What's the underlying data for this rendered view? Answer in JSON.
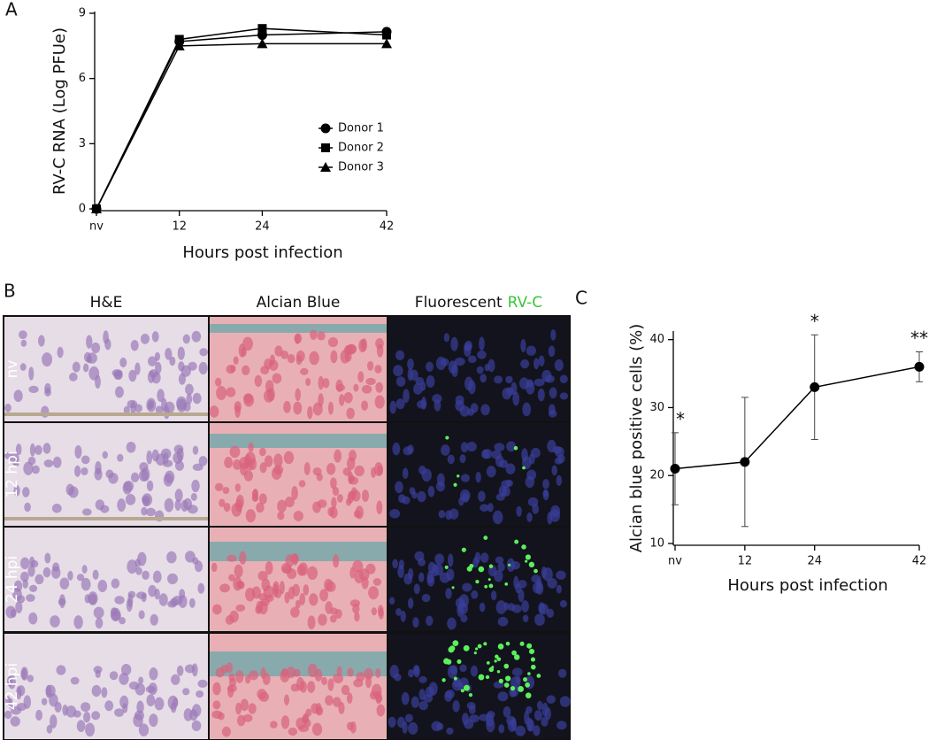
{
  "panel_labels": [
    "A",
    "B",
    "C"
  ],
  "chart_data": [
    {
      "type": "line",
      "y_label": "RV-C RNA (Log PFUe)",
      "x_label": "Hours post infection",
      "x": [
        0,
        12,
        24,
        42
      ],
      "xlim": [
        0,
        42
      ],
      "xticks": [
        {
          "value": 0,
          "label": "nv"
        },
        12,
        24,
        42
      ],
      "ylim": [
        0,
        9
      ],
      "yticks": [
        0,
        3,
        6,
        9
      ],
      "legend": "right",
      "series": [
        {
          "name": "Donor 1",
          "marker": "circle",
          "color": "#000000",
          "values": [
            0,
            7.7,
            8.0,
            8.15
          ]
        },
        {
          "name": "Donor 2",
          "marker": "square",
          "color": "#000000",
          "values": [
            0,
            7.8,
            8.3,
            8.0
          ]
        },
        {
          "name": "Donor 3",
          "marker": "triangle",
          "color": "#000000",
          "values": [
            0,
            7.5,
            7.6,
            7.6
          ]
        }
      ]
    },
    {
      "type": "line",
      "y_label": "Alcian blue positive cells (%)",
      "x_label": "Hours post infection",
      "x": [
        0,
        12,
        24,
        42
      ],
      "xlim": [
        0,
        42
      ],
      "xticks": [
        {
          "value": 0,
          "label": "nv"
        },
        12,
        24,
        42
      ],
      "ylim": [
        10,
        41
      ],
      "yticks": [
        10,
        20,
        30,
        40
      ],
      "series": [
        {
          "marker": "circle",
          "color": "#000000",
          "values": [
            21,
            22,
            33,
            36
          ],
          "errors": [
            5.3,
            9.5,
            7.7,
            2.2
          ],
          "annotations": [
            "*",
            null,
            "*",
            "**"
          ]
        }
      ]
    }
  ],
  "micrographs": {
    "columns": [
      {
        "label": "H&E"
      },
      {
        "label": "Alcian Blue"
      },
      {
        "label": "Fluorescent",
        "label_highlight": "RV-C",
        "highlight_color": "#3cc43c"
      }
    ],
    "rows": [
      "nv",
      "12 hpi",
      "24 hpi",
      "42 hpi"
    ]
  }
}
